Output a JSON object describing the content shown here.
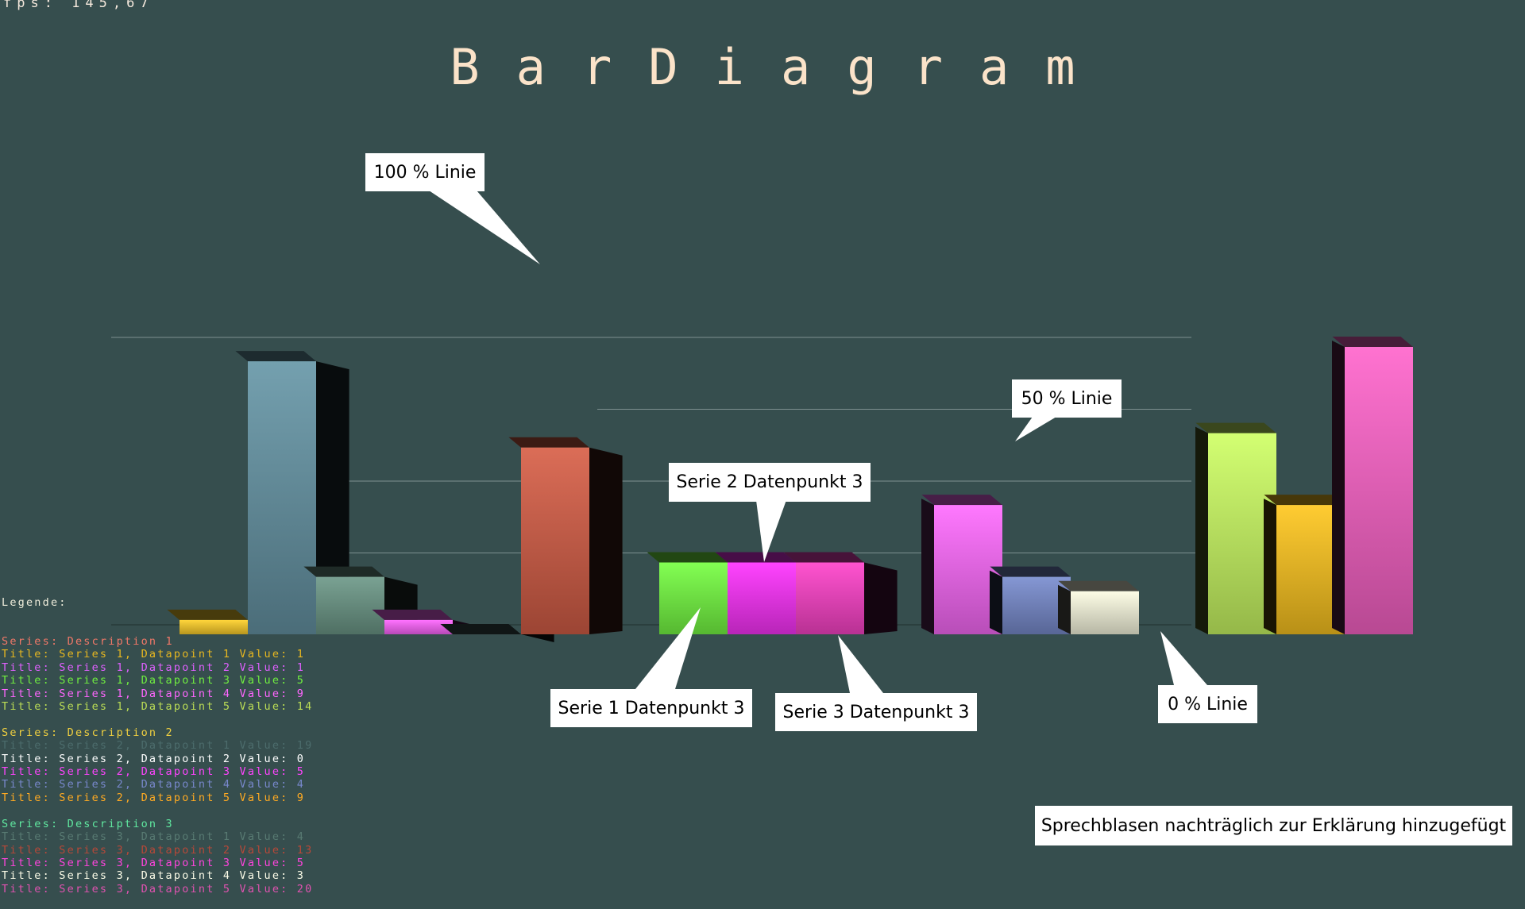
{
  "fps_label": "fps:  145,67",
  "chart_data": {
    "type": "bar",
    "title": "BarDiagram",
    "categories": [
      "Datapoint 1",
      "Datapoint 2",
      "Datapoint 3",
      "Datapoint 4",
      "Datapoint 5"
    ],
    "series": [
      {
        "name": "Description 1",
        "values": [
          1,
          1,
          5,
          9,
          14
        ],
        "colors": [
          "#ffd12a",
          "#ff66ff",
          "#78ff44",
          "#ff6cff",
          "#cfff66"
        ]
      },
      {
        "name": "Description 2",
        "values": [
          19,
          0,
          5,
          4,
          9
        ],
        "colors": [
          "#6898a8",
          "#3a5050",
          "#ff33ff",
          "#7a8ed0",
          "#ffc820"
        ]
      },
      {
        "name": "Description 3",
        "values": [
          4,
          13,
          5,
          3,
          20
        ],
        "colors": [
          "#6e9a8a",
          "#d86048",
          "#ff44cc",
          "#fdfde4",
          "#ff66cc"
        ]
      }
    ],
    "ylim": [
      0,
      20
    ],
    "grid": true
  },
  "legend": {
    "heading": "Legende:",
    "series": [
      {
        "header": "Series: Description 1",
        "header_color": "#f07868",
        "rows": [
          {
            "text": "Title: Series 1, Datapoint 1 Value: 1",
            "color": "#e8b820"
          },
          {
            "text": "Title: Series 1, Datapoint 2 Value: 1",
            "color": "#e060ff"
          },
          {
            "text": "Title: Series 1, Datapoint 3 Value: 5",
            "color": "#70ee40"
          },
          {
            "text": "Title: Series 1, Datapoint 4 Value: 9",
            "color": "#ff66ff"
          },
          {
            "text": "Title: Series 1, Datapoint 5 Value: 14",
            "color": "#bbdd55"
          }
        ]
      },
      {
        "header": "Series: Description 2",
        "header_color": "#f0d040",
        "rows": [
          {
            "text": "Title: Series 2, Datapoint 1 Value: 19",
            "color": "#4c6c6c"
          },
          {
            "text": "Title: Series 2, Datapoint 2 Value: 0",
            "color": "#ffffff"
          },
          {
            "text": "Title: Series 2, Datapoint 3 Value: 5",
            "color": "#ff44ff"
          },
          {
            "text": "Title: Series 2, Datapoint 4 Value: 4",
            "color": "#7888cc"
          },
          {
            "text": "Title: Series 2, Datapoint 5 Value: 9",
            "color": "#ffaa22"
          }
        ]
      },
      {
        "header": "Series: Description 3",
        "header_color": "#60e8a0",
        "rows": [
          {
            "text": "Title: Series 3, Datapoint 1 Value: 4",
            "color": "#587a72"
          },
          {
            "text": "Title: Series 3, Datapoint 2 Value: 13",
            "color": "#b84838"
          },
          {
            "text": "Title: Series 3, Datapoint 3 Value: 5",
            "color": "#ff44dd"
          },
          {
            "text": "Title: Series 3, Datapoint 4 Value: 3",
            "color": "#fcfce8"
          },
          {
            "text": "Title: Series 3, Datapoint 5 Value: 20",
            "color": "#e052b0"
          }
        ]
      }
    ]
  },
  "callouts": {
    "line_100": "100 % Linie",
    "line_50": "50 % Linie",
    "line_0": "0 % Linie",
    "serie2_dp3": "Serie 2 Datenpunkt 3",
    "serie1_dp3": "Serie 1 Datenpunkt 3",
    "serie3_dp3": "Serie 3 Datenpunkt 3",
    "note": "Sprechblasen nachträglich zur Erklärung hinzugefügt"
  }
}
